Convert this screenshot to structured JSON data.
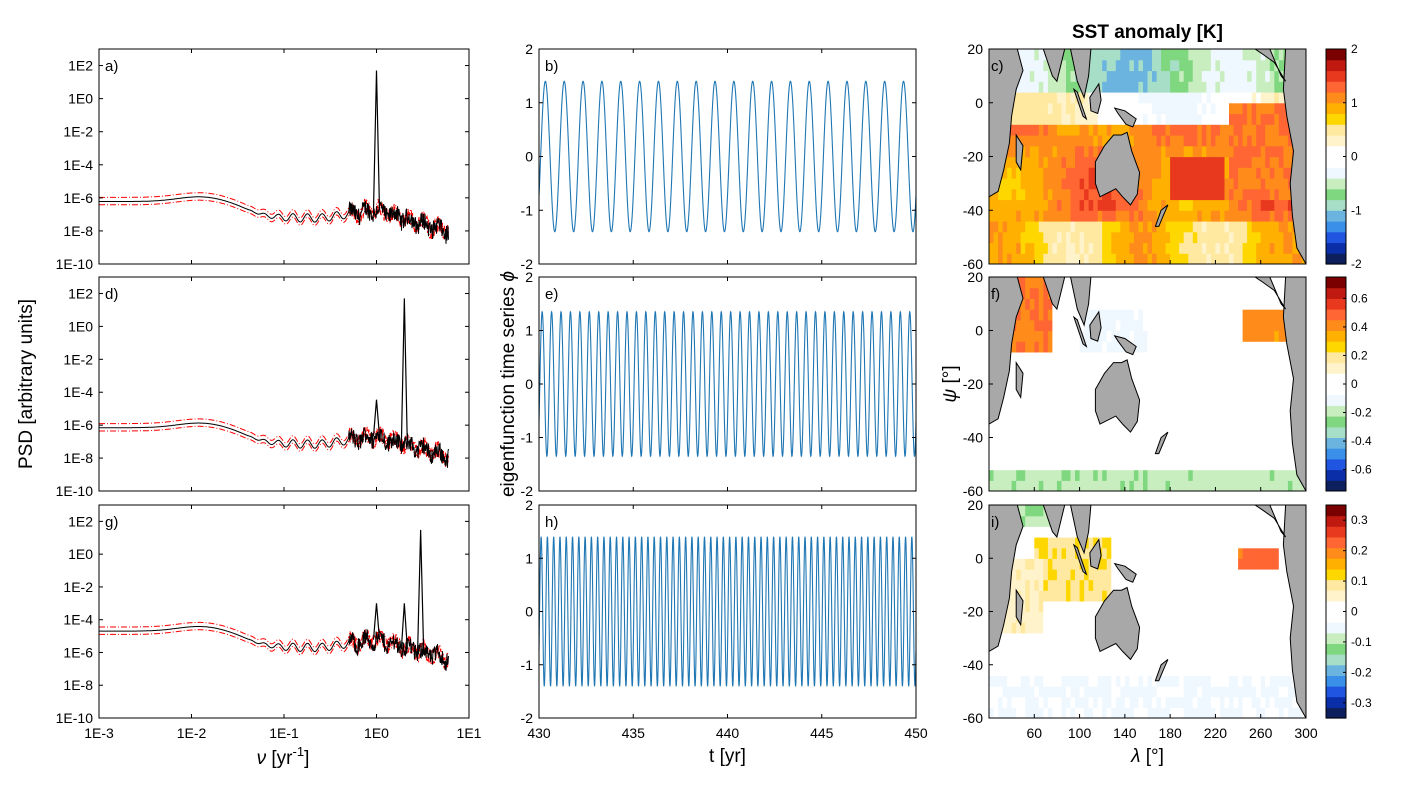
{
  "figure": {
    "title": "SST anomaly [K]",
    "psd_ylabel": "PSD [arbitrary units]",
    "psd_xlabel_sym": "ν",
    "psd_xlabel_unit": " [yr",
    "psd_xlabel_exp": "-1",
    "psd_xlabel_close": "]",
    "ts_ylabel": "eigenfunction time series ",
    "ts_ylabel_sym": "ϕ",
    "ts_xlabel": "t [yr]",
    "map_ylabel_sym": "ψ",
    "map_ylabel_unit": " [°]",
    "map_xlabel_sym": "λ",
    "map_xlabel_unit": " [°]"
  },
  "chart_data": [
    {
      "type": "line",
      "panel": "a)",
      "x_scale": "log",
      "y_scale": "log",
      "xlim": [
        0.001,
        10
      ],
      "ylim": [
        1e-10,
        1000
      ],
      "xticks": [
        "1E-3",
        "1E-2",
        "1E-1",
        "1E0",
        "1E1"
      ],
      "yticks": [
        "1E-10",
        "1E-8",
        "1E-6",
        "1E-4",
        "1E-2",
        "1E0",
        "1E2"
      ],
      "peaks_freq": [
        1.0
      ],
      "peak_psd": 50,
      "baseline_psd": 6e-07,
      "high_freq_psd": 2e-09,
      "series": [
        {
          "name": "",
          "color": "#000000"
        },
        {
          "name": "",
          "color": "#ff0000"
        }
      ]
    },
    {
      "type": "line",
      "panel": "d)",
      "x_scale": "log",
      "y_scale": "log",
      "xlim": [
        0.001,
        10
      ],
      "ylim": [
        1e-10,
        1000
      ],
      "xticks": [
        "1E-3",
        "1E-2",
        "1E-1",
        "1E0",
        "1E1"
      ],
      "yticks": [
        "1E-10",
        "1E-8",
        "1E-6",
        "1E-4",
        "1E-2",
        "1E0",
        "1E2"
      ],
      "peaks_freq": [
        1.0,
        2.0
      ],
      "peak_psd": 50,
      "baseline_psd": 7e-07,
      "high_freq_psd": 3e-09,
      "series": [
        {
          "name": "",
          "color": "#000000"
        },
        {
          "name": "",
          "color": "#ff0000"
        }
      ]
    },
    {
      "type": "line",
      "panel": "g)",
      "x_scale": "log",
      "y_scale": "log",
      "xlim": [
        0.001,
        10
      ],
      "ylim": [
        1e-10,
        1000
      ],
      "xticks": [
        "1E-3",
        "1E-2",
        "1E-1",
        "1E0",
        "1E1"
      ],
      "yticks": [
        "1E-10",
        "1E-8",
        "1E-6",
        "1E-4",
        "1E-2",
        "1E0",
        "1E2"
      ],
      "peaks_freq": [
        1.0,
        2.0,
        3.0
      ],
      "peak_psd": 30,
      "baseline_psd": 2e-05,
      "high_freq_psd": 1e-07,
      "series": [
        {
          "name": "",
          "color": "#000000"
        },
        {
          "name": "",
          "color": "#ff0000"
        }
      ]
    },
    {
      "type": "line",
      "panel": "b)",
      "xlim": [
        430,
        450
      ],
      "ylim": [
        -2,
        2
      ],
      "xticks": [
        "430",
        "435",
        "440",
        "445",
        "450"
      ],
      "yticks": [
        "-2",
        "-1",
        "0",
        "1",
        "2"
      ],
      "amplitude": 1.4,
      "frequency_per_yr": 1.0,
      "color": "#1f77b4"
    },
    {
      "type": "line",
      "panel": "e)",
      "xlim": [
        430,
        450
      ],
      "ylim": [
        -2,
        2
      ],
      "xticks": [
        "430",
        "435",
        "440",
        "445",
        "450"
      ],
      "yticks": [
        "-2",
        "-1",
        "0",
        "1",
        "2"
      ],
      "amplitude": 1.35,
      "frequency_per_yr": 2.0,
      "color": "#1f77b4"
    },
    {
      "type": "line",
      "panel": "h)",
      "xlim": [
        430,
        450
      ],
      "ylim": [
        -2,
        2
      ],
      "xticks": [
        "430",
        "435",
        "440",
        "445",
        "450"
      ],
      "yticks": [
        "-2",
        "-1",
        "0",
        "1",
        "2"
      ],
      "amplitude": 1.4,
      "frequency_per_yr": 3.0,
      "color": "#1f77b4"
    },
    {
      "type": "heatmap",
      "panel": "c)",
      "xlim": [
        20,
        300
      ],
      "ylim": [
        -60,
        20
      ],
      "xticks": [
        "60",
        "100",
        "140",
        "180",
        "220",
        "260",
        "300"
      ],
      "yticks": [
        "-60",
        "-40",
        "-20",
        "0",
        "20"
      ],
      "colorbar_ticks": [
        "-2",
        "-1",
        "0",
        "1",
        "2"
      ],
      "clim": [
        -2,
        2
      ]
    },
    {
      "type": "heatmap",
      "panel": "f)",
      "xlim": [
        20,
        300
      ],
      "ylim": [
        -60,
        20
      ],
      "xticks": [
        "60",
        "100",
        "140",
        "180",
        "220",
        "260",
        "300"
      ],
      "yticks": [
        "-60",
        "-40",
        "-20",
        "0",
        "20"
      ],
      "colorbar_ticks": [
        "-0.6",
        "-0.4",
        "-0.2",
        "0",
        "0.2",
        "0.4",
        "0.6"
      ],
      "clim": [
        -0.75,
        0.75
      ]
    },
    {
      "type": "heatmap",
      "panel": "i)",
      "xlim": [
        20,
        300
      ],
      "ylim": [
        -60,
        20
      ],
      "xticks": [
        "60",
        "100",
        "140",
        "180",
        "220",
        "260",
        "300"
      ],
      "yticks": [
        "-60",
        "-40",
        "-20",
        "0",
        "20"
      ],
      "colorbar_ticks": [
        "-0.3",
        "-0.2",
        "-0.1",
        "0",
        "0.1",
        "0.2",
        "0.3"
      ],
      "clim": [
        -0.35,
        0.35
      ]
    }
  ],
  "colormap": [
    "#0d1f5c",
    "#0a2ea8",
    "#1f55e0",
    "#3a8fe8",
    "#6cb4e0",
    "#a6dec8",
    "#7fd87f",
    "#c8eec0",
    "#f0f8ff",
    "#ffffff",
    "#ffffff",
    "#fff3cc",
    "#ffe9a0",
    "#ffd700",
    "#ffb000",
    "#ff8c1a",
    "#ff6633",
    "#e8391e",
    "#c01a10",
    "#7a0000"
  ]
}
